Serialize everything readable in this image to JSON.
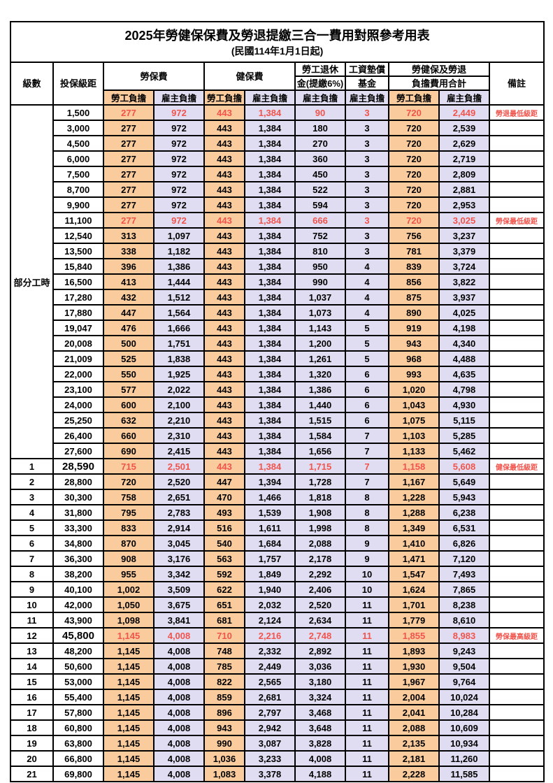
{
  "title": "2025年勞健保保費及勞退提繳三合一費用對照參考用表",
  "subtitle": "(民國114年1月1日起)",
  "header": {
    "level": "級數",
    "bracket": "投保級距",
    "labor_ins": "勞保費",
    "health_ins": "健保費",
    "pension_line1": "勞工退休",
    "pension_line2": "金(提繳6%)",
    "wage_fund_line1": "工資墊償",
    "wage_fund_line2": "基金",
    "total_line1": "勞健保及勞退",
    "total_line2": "負擔費用合計",
    "remark": "備註",
    "employee": "勞工負擔",
    "employer": "雇主負擔"
  },
  "part_time_label": "部分工時",
  "part_time_rowspan": 23,
  "colors": {
    "employee_bg": "#FACB9C",
    "employer_bg": "#E0DDF2",
    "highlight_red": "#F0544C",
    "border": "#000000"
  },
  "rows": [
    {
      "level": "",
      "bracket": "1,500",
      "values": [
        "277",
        "972",
        "443",
        "1,384",
        "90",
        "3",
        "720",
        "2,449"
      ],
      "remark": "勞退最低級距",
      "red": true,
      "bracket_bold": false
    },
    {
      "level": "",
      "bracket": "3,000",
      "values": [
        "277",
        "972",
        "443",
        "1,384",
        "180",
        "3",
        "720",
        "2,539"
      ],
      "remark": "",
      "red": false,
      "bracket_bold": false
    },
    {
      "level": "",
      "bracket": "4,500",
      "values": [
        "277",
        "972",
        "443",
        "1,384",
        "270",
        "3",
        "720",
        "2,629"
      ],
      "remark": "",
      "red": false,
      "bracket_bold": false
    },
    {
      "level": "",
      "bracket": "6,000",
      "values": [
        "277",
        "972",
        "443",
        "1,384",
        "360",
        "3",
        "720",
        "2,719"
      ],
      "remark": "",
      "red": false,
      "bracket_bold": false
    },
    {
      "level": "",
      "bracket": "7,500",
      "values": [
        "277",
        "972",
        "443",
        "1,384",
        "450",
        "3",
        "720",
        "2,809"
      ],
      "remark": "",
      "red": false,
      "bracket_bold": false
    },
    {
      "level": "",
      "bracket": "8,700",
      "values": [
        "277",
        "972",
        "443",
        "1,384",
        "522",
        "3",
        "720",
        "2,881"
      ],
      "remark": "",
      "red": false,
      "bracket_bold": false
    },
    {
      "level": "",
      "bracket": "9,900",
      "values": [
        "277",
        "972",
        "443",
        "1,384",
        "594",
        "3",
        "720",
        "2,953"
      ],
      "remark": "",
      "red": false,
      "bracket_bold": false
    },
    {
      "level": "",
      "bracket": "11,100",
      "values": [
        "277",
        "972",
        "443",
        "1,384",
        "666",
        "3",
        "720",
        "3,025"
      ],
      "remark": "勞保最低級距",
      "red": true,
      "bracket_bold": false
    },
    {
      "level": "",
      "bracket": "12,540",
      "values": [
        "313",
        "1,097",
        "443",
        "1,384",
        "752",
        "3",
        "756",
        "3,237"
      ],
      "remark": "",
      "red": false,
      "bracket_bold": false
    },
    {
      "level": "",
      "bracket": "13,500",
      "values": [
        "338",
        "1,182",
        "443",
        "1,384",
        "810",
        "3",
        "781",
        "3,379"
      ],
      "remark": "",
      "red": false,
      "bracket_bold": false
    },
    {
      "level": "",
      "bracket": "15,840",
      "values": [
        "396",
        "1,386",
        "443",
        "1,384",
        "950",
        "4",
        "839",
        "3,724"
      ],
      "remark": "",
      "red": false,
      "bracket_bold": false
    },
    {
      "level": "",
      "bracket": "16,500",
      "values": [
        "413",
        "1,444",
        "443",
        "1,384",
        "990",
        "4",
        "856",
        "3,822"
      ],
      "remark": "",
      "red": false,
      "bracket_bold": false
    },
    {
      "level": "",
      "bracket": "17,280",
      "values": [
        "432",
        "1,512",
        "443",
        "1,384",
        "1,037",
        "4",
        "875",
        "3,937"
      ],
      "remark": "",
      "red": false,
      "bracket_bold": false
    },
    {
      "level": "",
      "bracket": "17,880",
      "values": [
        "447",
        "1,564",
        "443",
        "1,384",
        "1,073",
        "4",
        "890",
        "4,025"
      ],
      "remark": "",
      "red": false,
      "bracket_bold": false
    },
    {
      "level": "",
      "bracket": "19,047",
      "values": [
        "476",
        "1,666",
        "443",
        "1,384",
        "1,143",
        "5",
        "919",
        "4,198"
      ],
      "remark": "",
      "red": false,
      "bracket_bold": false
    },
    {
      "level": "",
      "bracket": "20,008",
      "values": [
        "500",
        "1,751",
        "443",
        "1,384",
        "1,200",
        "5",
        "943",
        "4,340"
      ],
      "remark": "",
      "red": false,
      "bracket_bold": false
    },
    {
      "level": "",
      "bracket": "21,009",
      "values": [
        "525",
        "1,838",
        "443",
        "1,384",
        "1,261",
        "5",
        "968",
        "4,488"
      ],
      "remark": "",
      "red": false,
      "bracket_bold": false
    },
    {
      "level": "",
      "bracket": "22,000",
      "values": [
        "550",
        "1,925",
        "443",
        "1,384",
        "1,320",
        "6",
        "993",
        "4,635"
      ],
      "remark": "",
      "red": false,
      "bracket_bold": false
    },
    {
      "level": "",
      "bracket": "23,100",
      "values": [
        "577",
        "2,022",
        "443",
        "1,384",
        "1,386",
        "6",
        "1,020",
        "4,798"
      ],
      "remark": "",
      "red": false,
      "bracket_bold": false
    },
    {
      "level": "",
      "bracket": "24,000",
      "values": [
        "600",
        "2,100",
        "443",
        "1,384",
        "1,440",
        "6",
        "1,043",
        "4,930"
      ],
      "remark": "",
      "red": false,
      "bracket_bold": false
    },
    {
      "level": "",
      "bracket": "25,250",
      "values": [
        "632",
        "2,210",
        "443",
        "1,384",
        "1,515",
        "6",
        "1,075",
        "5,115"
      ],
      "remark": "",
      "red": false,
      "bracket_bold": false
    },
    {
      "level": "",
      "bracket": "26,400",
      "values": [
        "660",
        "2,310",
        "443",
        "1,384",
        "1,584",
        "7",
        "1,103",
        "5,285"
      ],
      "remark": "",
      "red": false,
      "bracket_bold": false
    },
    {
      "level": "",
      "bracket": "27,600",
      "values": [
        "690",
        "2,415",
        "443",
        "1,384",
        "1,656",
        "7",
        "1,133",
        "5,462"
      ],
      "remark": "",
      "red": false,
      "bracket_bold": false
    },
    {
      "level": "1",
      "bracket": "28,590",
      "values": [
        "715",
        "2,501",
        "443",
        "1,384",
        "1,715",
        "7",
        "1,158",
        "5,608"
      ],
      "remark": "健保最低級距",
      "red": true,
      "bracket_bold": true
    },
    {
      "level": "2",
      "bracket": "28,800",
      "values": [
        "720",
        "2,520",
        "447",
        "1,394",
        "1,728",
        "7",
        "1,167",
        "5,649"
      ],
      "remark": "",
      "red": false,
      "bracket_bold": false
    },
    {
      "level": "3",
      "bracket": "30,300",
      "values": [
        "758",
        "2,651",
        "470",
        "1,466",
        "1,818",
        "8",
        "1,228",
        "5,943"
      ],
      "remark": "",
      "red": false,
      "bracket_bold": false
    },
    {
      "level": "4",
      "bracket": "31,800",
      "values": [
        "795",
        "2,783",
        "493",
        "1,539",
        "1,908",
        "8",
        "1,288",
        "6,238"
      ],
      "remark": "",
      "red": false,
      "bracket_bold": false
    },
    {
      "level": "5",
      "bracket": "33,300",
      "values": [
        "833",
        "2,914",
        "516",
        "1,611",
        "1,998",
        "8",
        "1,349",
        "6,531"
      ],
      "remark": "",
      "red": false,
      "bracket_bold": false
    },
    {
      "level": "6",
      "bracket": "34,800",
      "values": [
        "870",
        "3,045",
        "540",
        "1,684",
        "2,088",
        "9",
        "1,410",
        "6,826"
      ],
      "remark": "",
      "red": false,
      "bracket_bold": false
    },
    {
      "level": "7",
      "bracket": "36,300",
      "values": [
        "908",
        "3,176",
        "563",
        "1,757",
        "2,178",
        "9",
        "1,471",
        "7,120"
      ],
      "remark": "",
      "red": false,
      "bracket_bold": false
    },
    {
      "level": "8",
      "bracket": "38,200",
      "values": [
        "955",
        "3,342",
        "592",
        "1,849",
        "2,292",
        "10",
        "1,547",
        "7,493"
      ],
      "remark": "",
      "red": false,
      "bracket_bold": false
    },
    {
      "level": "9",
      "bracket": "40,100",
      "values": [
        "1,002",
        "3,509",
        "622",
        "1,940",
        "2,406",
        "10",
        "1,624",
        "7,865"
      ],
      "remark": "",
      "red": false,
      "bracket_bold": false
    },
    {
      "level": "10",
      "bracket": "42,000",
      "values": [
        "1,050",
        "3,675",
        "651",
        "2,032",
        "2,520",
        "11",
        "1,701",
        "8,238"
      ],
      "remark": "",
      "red": false,
      "bracket_bold": false
    },
    {
      "level": "11",
      "bracket": "43,900",
      "values": [
        "1,098",
        "3,841",
        "681",
        "2,124",
        "2,634",
        "11",
        "1,779",
        "8,610"
      ],
      "remark": "",
      "red": false,
      "bracket_bold": false
    },
    {
      "level": "12",
      "bracket": "45,800",
      "values": [
        "1,145",
        "4,008",
        "710",
        "2,216",
        "2,748",
        "11",
        "1,855",
        "8,983"
      ],
      "remark": "勞保最高級距",
      "red": true,
      "bracket_bold": true
    },
    {
      "level": "13",
      "bracket": "48,200",
      "values": [
        "1,145",
        "4,008",
        "748",
        "2,332",
        "2,892",
        "11",
        "1,893",
        "9,243"
      ],
      "remark": "",
      "red": false,
      "bracket_bold": false
    },
    {
      "level": "14",
      "bracket": "50,600",
      "values": [
        "1,145",
        "4,008",
        "785",
        "2,449",
        "3,036",
        "11",
        "1,930",
        "9,504"
      ],
      "remark": "",
      "red": false,
      "bracket_bold": false
    },
    {
      "level": "15",
      "bracket": "53,000",
      "values": [
        "1,145",
        "4,008",
        "822",
        "2,565",
        "3,180",
        "11",
        "1,967",
        "9,764"
      ],
      "remark": "",
      "red": false,
      "bracket_bold": false
    },
    {
      "level": "16",
      "bracket": "55,400",
      "values": [
        "1,145",
        "4,008",
        "859",
        "2,681",
        "3,324",
        "11",
        "2,004",
        "10,024"
      ],
      "remark": "",
      "red": false,
      "bracket_bold": false
    },
    {
      "level": "17",
      "bracket": "57,800",
      "values": [
        "1,145",
        "4,008",
        "896",
        "2,797",
        "3,468",
        "11",
        "2,041",
        "10,284"
      ],
      "remark": "",
      "red": false,
      "bracket_bold": false
    },
    {
      "level": "18",
      "bracket": "60,800",
      "values": [
        "1,145",
        "4,008",
        "943",
        "2,942",
        "3,648",
        "11",
        "2,088",
        "10,609"
      ],
      "remark": "",
      "red": false,
      "bracket_bold": false
    },
    {
      "level": "19",
      "bracket": "63,800",
      "values": [
        "1,145",
        "4,008",
        "990",
        "3,087",
        "3,828",
        "11",
        "2,135",
        "10,934"
      ],
      "remark": "",
      "red": false,
      "bracket_bold": false
    },
    {
      "level": "20",
      "bracket": "66,800",
      "values": [
        "1,145",
        "4,008",
        "1,036",
        "3,233",
        "4,008",
        "11",
        "2,181",
        "11,260"
      ],
      "remark": "",
      "red": false,
      "bracket_bold": false
    },
    {
      "level": "21",
      "bracket": "69,800",
      "values": [
        "1,145",
        "4,008",
        "1,083",
        "3,378",
        "4,188",
        "11",
        "2,228",
        "11,585"
      ],
      "remark": "",
      "red": false,
      "bracket_bold": false
    }
  ]
}
